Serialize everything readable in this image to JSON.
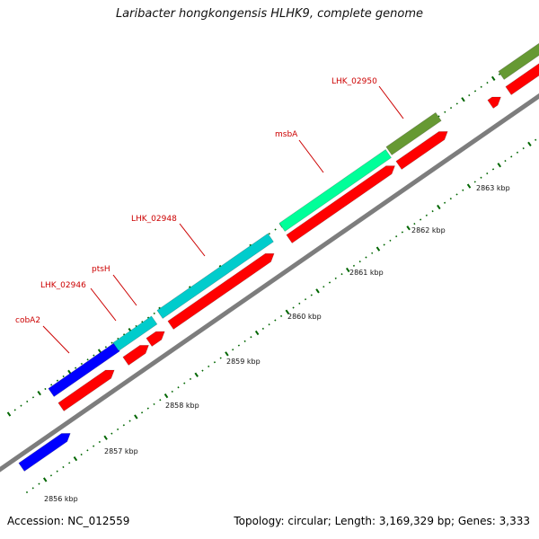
{
  "title": "Laribacter hongkongensis HLHK9, complete genome",
  "accession": "Accession: NC_012559",
  "summary": "Topology: circular; Length: 3,169,329 bp; Genes: 3,333",
  "colors": {
    "backbone": "#8c8c8c",
    "cds": "#ff0000",
    "minor_tick": "#006600",
    "label_text": "#cc0000",
    "leader_line": "#cc0000"
  },
  "kbp_labels": [
    "2856 kbp",
    "2857 kbp",
    "2858 kbp",
    "2859 kbp",
    "2860 kbp",
    "2861 kbp",
    "2862 kbp",
    "2863 kbp"
  ],
  "genes": [
    {
      "label": "cobA2",
      "color": "#0000ff"
    },
    {
      "label": "LHK_02946",
      "color": "#00cccc"
    },
    {
      "label": "ptsH",
      "color": "#00cccc"
    },
    {
      "label": "LHK_02948",
      "color": "#00cccc"
    },
    {
      "label": "msbA",
      "color": "#00ff99"
    },
    {
      "label": "LHK_02950",
      "color": "#669933"
    },
    {
      "label": "",
      "color": "#669933"
    },
    {
      "label": "",
      "color": "#0000ff"
    }
  ]
}
